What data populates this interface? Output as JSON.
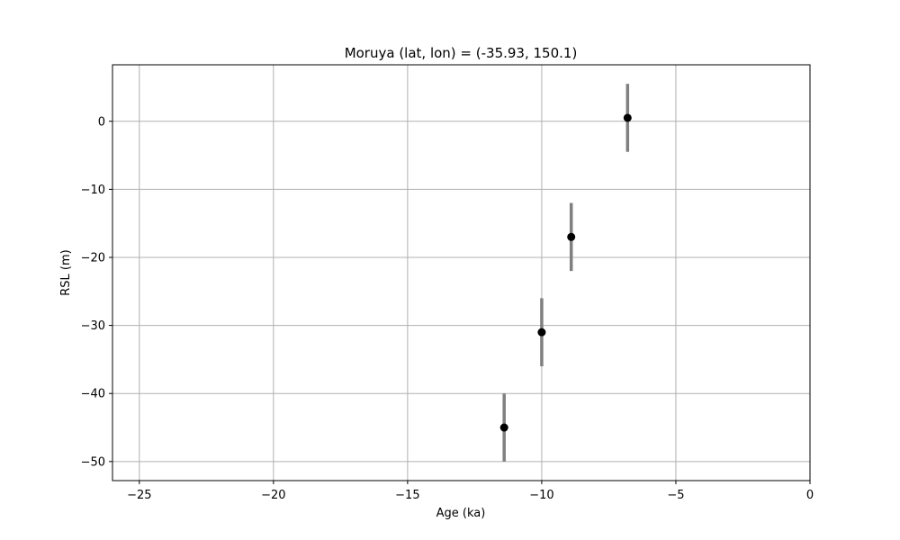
{
  "chart_data": {
    "type": "scatter",
    "title": "Moruya (lat, lon) = (-35.93, 150.1)",
    "xlabel": "Age (ka)",
    "ylabel": "RSL (m)",
    "xlim": [
      -26,
      0
    ],
    "ylim": [
      -52.8,
      8.3
    ],
    "xticks": [
      -25,
      -20,
      -15,
      -10,
      -5,
      0
    ],
    "xtick_labels": [
      "−25",
      "−20",
      "−15",
      "−10",
      "−5",
      "0"
    ],
    "yticks": [
      0,
      -10,
      -20,
      -30,
      -40,
      -50
    ],
    "ytick_labels": [
      "0",
      "−10",
      "−20",
      "−30",
      "−40",
      "−50"
    ],
    "grid": true,
    "series": [
      {
        "x": [
          -11.4,
          -10.0,
          -8.9,
          -6.8
        ],
        "y": [
          -45.0,
          -31.0,
          -17.0,
          0.5
        ],
        "yerr": [
          5.0,
          5.0,
          5.0,
          5.0
        ],
        "marker_color": "#000000",
        "errorbar_color": "#808080"
      }
    ]
  }
}
